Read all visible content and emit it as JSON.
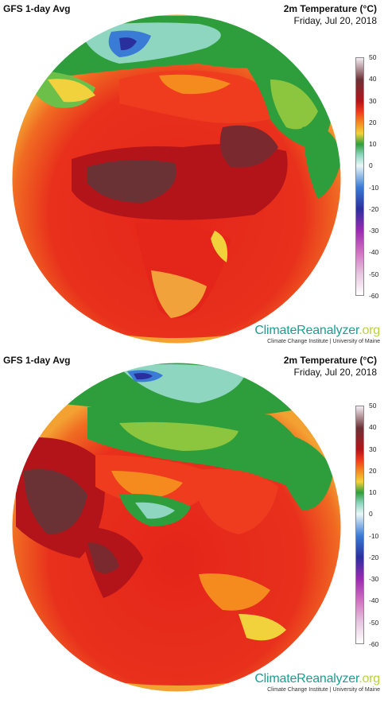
{
  "panels": [
    {
      "model_label": "GFS 1-day Avg",
      "variable": "2m Temperature (°C)",
      "date": "Friday, Jul 20, 2018",
      "view": "europe-africa"
    },
    {
      "model_label": "GFS 1-day Avg",
      "variable": "2m Temperature (°C)",
      "date": "Friday, Jul 20, 2018",
      "view": "asia"
    }
  ],
  "colorbar": {
    "ticks": [
      "50",
      "40",
      "30",
      "20",
      "10",
      "0",
      "-10",
      "-20",
      "-30",
      "-40",
      "-50",
      "-60"
    ],
    "colors": {
      "50": "#f4eef4",
      "40": "#6b3236",
      "30": "#b2141a",
      "25": "#ef3b1e",
      "20": "#f58a1f",
      "15": "#f2d23c",
      "10": "#2e9e3c",
      "5": "#8fd6c0",
      "0": "#e8f7f7",
      "-10": "#3a7bd5",
      "-20": "#2a2f9e",
      "-30": "#9a2ab0",
      "-40": "#d070c0",
      "-50": "#e6c5e0",
      "-60": "#ffffff"
    }
  },
  "branding": {
    "name_part1": "ClimateReanalyzer",
    "name_part2": ".org",
    "subtitle": "Climate Change Institute | University of Maine"
  }
}
